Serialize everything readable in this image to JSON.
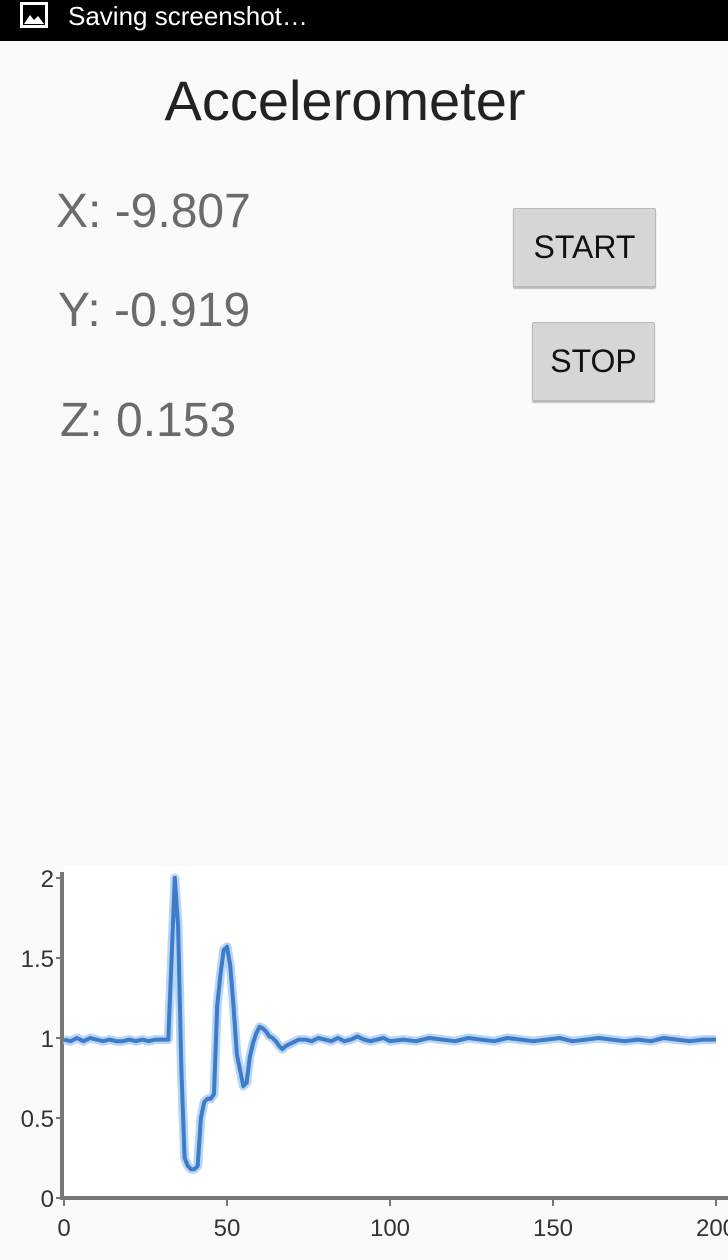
{
  "statusbar": {
    "text": "Saving screenshot…",
    "icon": "image-icon"
  },
  "app": {
    "title": "Accelerometer"
  },
  "readings": {
    "x": "X: -9.807",
    "y": "Y: -0.919",
    "z": "Z: 0.153"
  },
  "buttons": {
    "start": "START",
    "stop": "STOP"
  },
  "chart_data": {
    "type": "line",
    "xlim": [
      0,
      200
    ],
    "ylim": [
      0,
      2
    ],
    "xticks": [
      "0",
      "50",
      "100",
      "150",
      "200"
    ],
    "yticks": [
      "0",
      "0.5",
      "1",
      "1.5",
      "2"
    ],
    "grid": false,
    "series": [
      {
        "color": "#3d7cc9",
        "x": [
          0,
          2,
          4,
          6,
          8,
          10,
          12,
          14,
          16,
          18,
          20,
          22,
          24,
          26,
          28,
          30,
          32,
          33,
          34,
          35,
          36,
          37,
          38,
          39,
          40,
          41,
          42,
          43,
          44,
          45,
          46,
          47,
          48,
          49,
          50,
          51,
          52,
          53,
          54,
          55,
          56,
          57,
          58,
          59,
          60,
          61,
          62,
          63,
          64,
          65,
          66,
          67,
          68,
          70,
          72,
          74,
          76,
          78,
          80,
          82,
          84,
          86,
          88,
          90,
          92,
          94,
          96,
          98,
          100,
          104,
          108,
          112,
          116,
          120,
          124,
          128,
          132,
          136,
          140,
          144,
          148,
          152,
          156,
          160,
          164,
          168,
          172,
          176,
          180,
          184,
          188,
          192,
          196,
          200
        ],
        "y": [
          0.99,
          0.98,
          1.0,
          0.98,
          1.0,
          0.99,
          0.98,
          0.99,
          0.98,
          0.98,
          0.99,
          0.98,
          0.99,
          0.98,
          0.99,
          0.99,
          0.99,
          1.5,
          2.0,
          1.7,
          0.8,
          0.25,
          0.2,
          0.18,
          0.18,
          0.2,
          0.5,
          0.6,
          0.62,
          0.62,
          0.65,
          1.2,
          1.4,
          1.55,
          1.57,
          1.45,
          1.2,
          0.9,
          0.8,
          0.7,
          0.72,
          0.88,
          0.97,
          1.03,
          1.07,
          1.06,
          1.04,
          1.01,
          1.0,
          0.98,
          0.95,
          0.93,
          0.95,
          0.97,
          0.99,
          0.99,
          0.98,
          1.0,
          0.99,
          0.98,
          1.0,
          0.98,
          0.99,
          1.01,
          0.99,
          0.98,
          0.99,
          1.0,
          0.98,
          0.99,
          0.98,
          1.0,
          0.99,
          0.98,
          1.0,
          0.99,
          0.98,
          1.0,
          0.99,
          0.98,
          0.99,
          1.0,
          0.98,
          0.99,
          1.0,
          0.99,
          0.98,
          0.99,
          0.98,
          1.0,
          0.99,
          0.98,
          0.99,
          0.99
        ]
      }
    ]
  }
}
